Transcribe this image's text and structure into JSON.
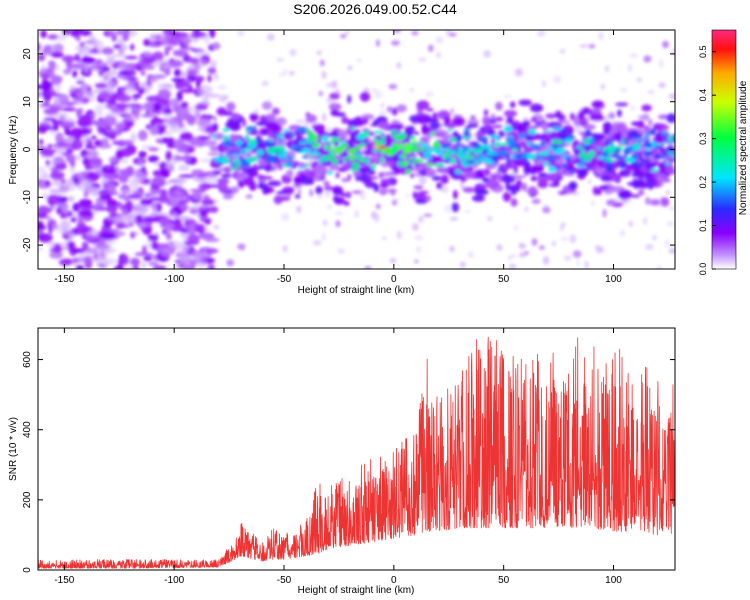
{
  "title": "S206.2026.049.00.52.C44",
  "chart_data": [
    {
      "type": "heatmap",
      "xlabel": "Height of straight line (km)",
      "ylabel": "Frequency (Hz)",
      "xlim": [
        -162,
        128
      ],
      "ylim": [
        -25,
        25
      ],
      "x_ticks": [
        -150,
        -100,
        -50,
        0,
        50,
        100
      ],
      "y_ticks": [
        -20,
        -10,
        0,
        10,
        20
      ],
      "colorbar": {
        "label": "Normalized spectral amplitude",
        "range": [
          0.0,
          0.55
        ],
        "ticks": [
          0.0,
          0.1,
          0.2,
          0.3,
          0.4,
          0.5
        ],
        "tick_labels": [
          "0.0",
          "0.1",
          "0.2",
          "0.3",
          "0.4",
          "0.5"
        ],
        "colors": [
          "#ffffff",
          "#8a00ff",
          "#3f2dff",
          "#00ffff",
          "#00ff00",
          "#ffff00",
          "#ff0000",
          "#ff1a70"
        ]
      },
      "description_regions": [
        {
          "x_range": [
            -162,
            -82
          ],
          "freq_range": [
            -25,
            25
          ],
          "amplitude": [
            0.02,
            0.08
          ]
        },
        {
          "x_range": [
            -82,
            128
          ],
          "freq_range": [
            -12,
            10
          ],
          "amplitude": [
            0.05,
            0.45
          ]
        }
      ]
    },
    {
      "type": "line",
      "xlabel": "Height of straight line (km)",
      "ylabel": "SNR (10 * v/v)",
      "xlim": [
        -162,
        128
      ],
      "ylim": [
        0,
        690
      ],
      "x_ticks": [
        -150,
        -100,
        -50,
        0,
        50,
        100
      ],
      "y_ticks": [
        0,
        200,
        400,
        600
      ],
      "color": "#ee3333",
      "envelope": {
        "x": [
          -162,
          -120,
          -80,
          -72,
          -70,
          -60,
          -55,
          -50,
          -40,
          -32,
          -30,
          -20,
          -10,
          0,
          10,
          15,
          20,
          30,
          40,
          50,
          60,
          70,
          80,
          90,
          100,
          110,
          120,
          128
        ],
        "low": [
          5,
          5,
          8,
          30,
          40,
          25,
          30,
          30,
          40,
          50,
          60,
          70,
          80,
          90,
          100,
          110,
          110,
          120,
          120,
          120,
          120,
          120,
          120,
          120,
          110,
          110,
          100,
          100
        ],
        "high": [
          30,
          30,
          30,
          90,
          140,
          80,
          120,
          110,
          140,
          320,
          250,
          280,
          320,
          360,
          400,
          610,
          500,
          560,
          690,
          640,
          640,
          600,
          680,
          640,
          640,
          620,
          560,
          560
        ]
      }
    }
  ]
}
